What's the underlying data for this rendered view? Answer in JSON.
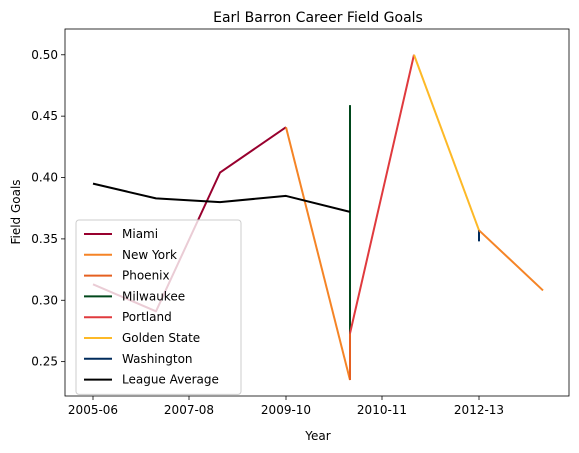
{
  "chart_data": {
    "type": "line",
    "title": "Earl Barron Career Field Goals",
    "xlabel": "Year",
    "ylabel": "Field Goals",
    "x_ticks": [
      "2005-06",
      "2007-08",
      "2009-10",
      "2010-11",
      "2012-13"
    ],
    "ylim": [
      0.222,
      0.521
    ],
    "y_ticks": [
      "0.25",
      "0.30",
      "0.35",
      "0.40",
      "0.45",
      "0.50"
    ],
    "y_tick_values": [
      0.25,
      0.3,
      0.35,
      0.4,
      0.45,
      0.5
    ],
    "legend_position": "lower-left",
    "series": [
      {
        "name": "Miami",
        "color": "#98002E",
        "points": [
          [
            "2005-06",
            0.313
          ],
          [
            "2006-07",
            0.291
          ],
          [
            "2007-08",
            0.404
          ],
          [
            "2009-10",
            0.441
          ]
        ]
      },
      {
        "name": "New York",
        "color": "#F58426",
        "points": [
          [
            "2009-10",
            0.441
          ],
          [
            "2010-11",
            0.235
          ]
        ]
      },
      {
        "name": "Phoenix",
        "color": "#E56020",
        "points": [
          [
            "2010-11",
            0.235
          ],
          [
            "2010-11",
            0.273
          ]
        ]
      },
      {
        "name": "Milwaukee",
        "color": "#00471B",
        "points": [
          [
            "2010-11",
            0.273
          ],
          [
            "2010-11",
            0.459
          ]
        ]
      },
      {
        "name": "Portland",
        "color": "#E03A3E",
        "points": [
          [
            "2010-11",
            0.273
          ],
          [
            "2011-12",
            0.5
          ]
        ]
      },
      {
        "name": "Golden State",
        "color": "#FDB927",
        "points": [
          [
            "2011-12",
            0.5
          ],
          [
            "2012-13",
            0.357
          ]
        ]
      },
      {
        "name": "Washington",
        "color": "#002B5C",
        "points": [
          [
            "2012-13",
            0.348
          ],
          [
            "2012-13",
            0.357
          ]
        ]
      },
      {
        "name": "New York",
        "color": "#F58426",
        "legend": false,
        "points": [
          [
            "2012-13",
            0.357
          ],
          [
            "2013-14",
            0.308
          ]
        ]
      },
      {
        "name": "League Average",
        "color": "#000000",
        "points": [
          [
            "2005-06",
            0.395
          ],
          [
            "2006-07",
            0.383
          ],
          [
            "2007-08",
            0.38
          ],
          [
            "2009-10",
            0.385
          ],
          [
            "2010-11",
            0.372
          ]
        ]
      }
    ]
  }
}
